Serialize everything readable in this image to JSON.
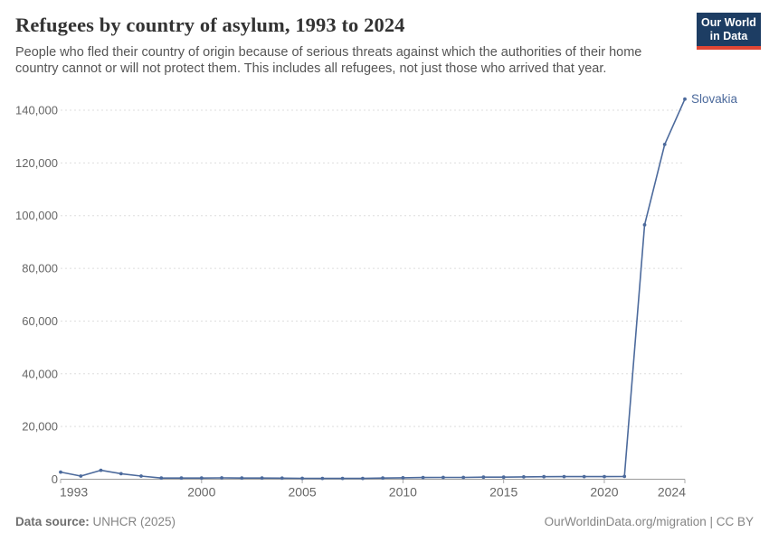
{
  "header": {
    "title": "Refugees by country of asylum, 1993 to 2024",
    "subtitle": "People who fled their country of origin because of serious threats against which the authorities of their home country cannot or will not protect them. This includes all refugees, not just those who arrived that year.",
    "logo": {
      "line1": "Our World",
      "line2": "in Data"
    }
  },
  "footer": {
    "datasource_label": "Data source:",
    "datasource_value": " UNHCR (2025)",
    "link": "OurWorldinData.org/migration | CC BY"
  },
  "colors": {
    "series_line": "#4c6a9c",
    "grid": "#dedede",
    "axis": "#9a9a9a",
    "tick": "#a8a8a8",
    "tick_label": "#666666",
    "logo_bg": "#1d3d63",
    "logo_stripe": "#e04634"
  },
  "chart_data": {
    "type": "line",
    "title": "Refugees by country of asylum, 1993 to 2024",
    "xlabel": "",
    "ylabel": "",
    "xlim": [
      1993,
      2024
    ],
    "ylim": [
      0,
      140000
    ],
    "grid": "horizontal-dashed",
    "legend_position": "end-of-line-label",
    "xticks": [
      1993,
      2000,
      2005,
      2010,
      2015,
      2020,
      2024
    ],
    "yticks": [
      0,
      20000,
      40000,
      60000,
      80000,
      100000,
      120000,
      140000
    ],
    "x": [
      1993,
      1994,
      1995,
      1996,
      1997,
      1998,
      1999,
      2000,
      2001,
      2002,
      2003,
      2004,
      2005,
      2006,
      2007,
      2008,
      2009,
      2010,
      2011,
      2012,
      2013,
      2014,
      2015,
      2016,
      2017,
      2018,
      2019,
      2020,
      2021,
      2022,
      2023,
      2024
    ],
    "series": [
      {
        "name": "Slovakia",
        "color": "#4c6a9c",
        "values": [
          2700,
          1200,
          3400,
          2100,
          1200,
          450,
          450,
          450,
          500,
          450,
          450,
          400,
          350,
          300,
          300,
          300,
          450,
          550,
          650,
          700,
          700,
          800,
          800,
          900,
          950,
          1000,
          1000,
          1000,
          1050,
          96500,
          127000,
          144200
        ]
      }
    ]
  }
}
